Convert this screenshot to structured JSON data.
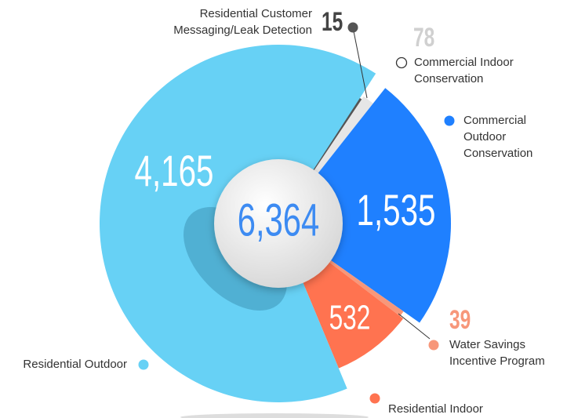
{
  "chart_data": {
    "type": "pie",
    "total_label": "6,364",
    "categories": [
      "Residential Customer Messaging/Leak Detection",
      "Commercial Indoor Conservation",
      "Commercial Outdoor Conservation",
      "Water Savings Incentive Program",
      "Residential Indoor",
      "Residential Outdoor"
    ],
    "values": [
      15,
      78,
      1535,
      39,
      532,
      4165
    ],
    "value_labels": [
      "15",
      "78",
      "1,535",
      "39",
      "532",
      "4,165"
    ],
    "colors": [
      "#555555",
      "#e6e6e6",
      "#1f80ff",
      "#f7977a",
      "#ff7350",
      "#67d1f5"
    ]
  }
}
